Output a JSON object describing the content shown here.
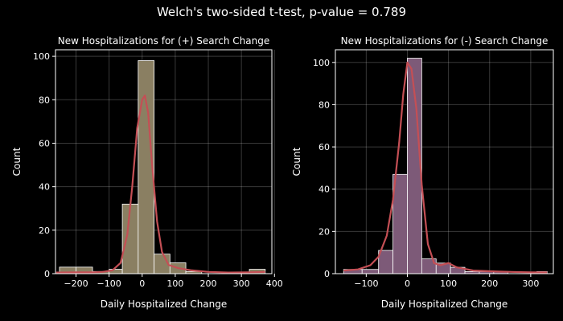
{
  "figure": {
    "suptitle": "Welch's two-sided t-test, p-value = 0.789"
  },
  "chart_data": [
    {
      "type": "bar",
      "subtype": "histogram with KDE line",
      "title": "New Hospitalizations for (+) Search Change",
      "xlabel": "Daily Hospitalized Change",
      "ylabel": "Count",
      "xlim": [
        -262,
        392
      ],
      "ylim": [
        0,
        103
      ],
      "xticks": [
        -200,
        -100,
        0,
        100,
        200,
        300,
        400
      ],
      "yticks": [
        0,
        20,
        40,
        60,
        80,
        100
      ],
      "grid": true,
      "bar_color": "#8a7f62",
      "line_color": "#c44f55",
      "bins": [
        {
          "x0": -250,
          "x1": -200,
          "count": 3
        },
        {
          "x0": -200,
          "x1": -150,
          "count": 3
        },
        {
          "x0": -150,
          "x1": -100,
          "count": 1
        },
        {
          "x0": -100,
          "x1": -60,
          "count": 2
        },
        {
          "x0": -60,
          "x1": -12,
          "count": 32
        },
        {
          "x0": -12,
          "x1": 36,
          "count": 98
        },
        {
          "x0": 36,
          "x1": 84,
          "count": 9
        },
        {
          "x0": 84,
          "x1": 132,
          "count": 5
        },
        {
          "x0": 132,
          "x1": 180,
          "count": 1
        },
        {
          "x0": 324,
          "x1": 372,
          "count": 2
        }
      ],
      "kde": [
        [
          -260,
          0.5
        ],
        [
          -200,
          0.6
        ],
        [
          -150,
          0.6
        ],
        [
          -120,
          0.8
        ],
        [
          -90,
          1.5
        ],
        [
          -65,
          5
        ],
        [
          -45,
          18
        ],
        [
          -30,
          40
        ],
        [
          -15,
          67
        ],
        [
          0,
          80
        ],
        [
          8,
          82
        ],
        [
          18,
          74
        ],
        [
          30,
          50
        ],
        [
          45,
          24
        ],
        [
          60,
          10
        ],
        [
          80,
          4
        ],
        [
          110,
          2.5
        ],
        [
          150,
          1.5
        ],
        [
          200,
          0.8
        ],
        [
          260,
          0.5
        ],
        [
          320,
          0.6
        ],
        [
          372,
          0.8
        ]
      ]
    },
    {
      "type": "bar",
      "subtype": "histogram with KDE line",
      "title": "New Hospitalizations for (-) Search Change",
      "xlabel": "Daily Hospitalized Change",
      "ylabel": "Count",
      "xlim": [
        -175,
        355
      ],
      "ylim": [
        0,
        106
      ],
      "xticks": [
        -100,
        0,
        100,
        200,
        300
      ],
      "yticks": [
        0,
        20,
        40,
        60,
        80,
        100
      ],
      "grid": true,
      "bar_color": "#7d5a78",
      "line_color": "#c44f55",
      "bins": [
        {
          "x0": -155,
          "x1": -110,
          "count": 2
        },
        {
          "x0": -110,
          "x1": -70,
          "count": 2
        },
        {
          "x0": -70,
          "x1": -35,
          "count": 11
        },
        {
          "x0": -35,
          "x1": 0,
          "count": 47
        },
        {
          "x0": 0,
          "x1": 35,
          "count": 102
        },
        {
          "x0": 35,
          "x1": 70,
          "count": 7
        },
        {
          "x0": 70,
          "x1": 105,
          "count": 5
        },
        {
          "x0": 105,
          "x1": 140,
          "count": 3
        },
        {
          "x0": 140,
          "x1": 175,
          "count": 1
        },
        {
          "x0": 175,
          "x1": 210,
          "count": 1
        },
        {
          "x0": 210,
          "x1": 245,
          "count": 1
        },
        {
          "x0": 245,
          "x1": 280,
          "count": 0
        },
        {
          "x0": 280,
          "x1": 315,
          "count": 0
        },
        {
          "x0": 315,
          "x1": 340,
          "count": 1
        }
      ],
      "kde": [
        [
          -155,
          1.5
        ],
        [
          -120,
          2
        ],
        [
          -90,
          4
        ],
        [
          -70,
          8
        ],
        [
          -50,
          18
        ],
        [
          -35,
          35
        ],
        [
          -20,
          62
        ],
        [
          -10,
          85
        ],
        [
          0,
          100
        ],
        [
          10,
          97
        ],
        [
          22,
          78
        ],
        [
          35,
          42
        ],
        [
          50,
          14
        ],
        [
          65,
          5
        ],
        [
          80,
          4
        ],
        [
          100,
          5
        ],
        [
          120,
          3
        ],
        [
          160,
          1.5
        ],
        [
          220,
          1
        ],
        [
          300,
          0.6
        ],
        [
          340,
          0.6
        ]
      ]
    }
  ]
}
